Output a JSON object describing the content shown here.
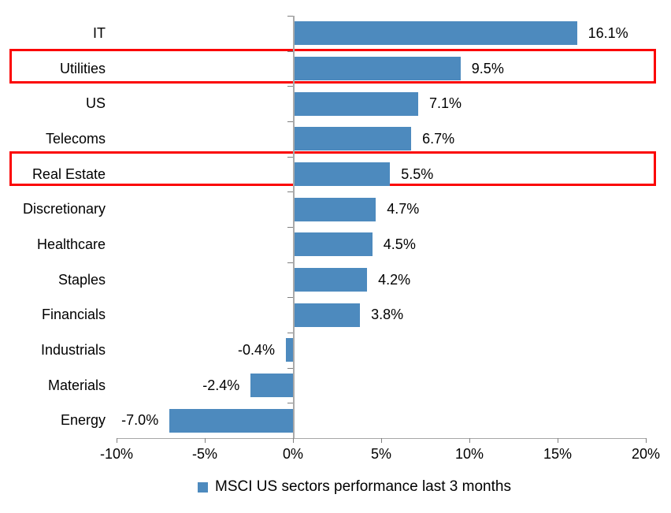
{
  "chart_data": {
    "type": "bar",
    "orientation": "horizontal",
    "categories": [
      "IT",
      "Utilities",
      "US",
      "Telecoms",
      "Real Estate",
      "Discretionary",
      "Healthcare",
      "Staples",
      "Financials",
      "Industrials",
      "Materials",
      "Energy"
    ],
    "values": [
      16.1,
      9.5,
      7.1,
      6.7,
      5.5,
      4.7,
      4.5,
      4.2,
      3.8,
      -0.4,
      -2.4,
      -7.0
    ],
    "value_labels": [
      "16.1%",
      "9.5%",
      "7.1%",
      "6.7%",
      "5.5%",
      "4.7%",
      "4.5%",
      "4.2%",
      "3.8%",
      "-0.4%",
      "-2.4%",
      "-7.0%"
    ],
    "x_tick_labels": [
      "-10%",
      "-5%",
      "0%",
      "5%",
      "10%",
      "15%",
      "20%"
    ],
    "x_tick_values": [
      -10,
      -5,
      0,
      5,
      10,
      15,
      20
    ],
    "xlim": [
      -10,
      20
    ],
    "grid": "off",
    "legend": "MSCI US sectors performance last 3 months",
    "legend_position": "bottom",
    "bar_color": "#4d8abe",
    "axis_color": "#a6a6a6",
    "tick_color": "#808080",
    "highlight_color": "#fb0404",
    "highlighted_categories": [
      "Utilities",
      "Real Estate"
    ]
  }
}
